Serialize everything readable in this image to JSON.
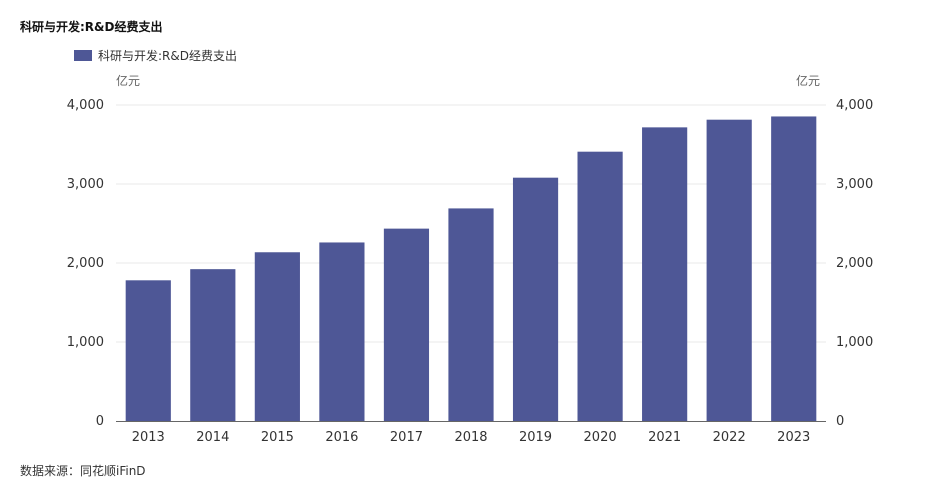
{
  "title": "科研与开发:R&D经费支出",
  "source": "数据来源：同花顺iFinD",
  "colors": {
    "bar": "#4e5796",
    "grid": "#e8e8e8",
    "axis": "#666666"
  },
  "chart_data": {
    "type": "bar",
    "title": "科研与开发:R&D经费支出",
    "categories": [
      "2013",
      "2014",
      "2015",
      "2016",
      "2017",
      "2018",
      "2019",
      "2020",
      "2021",
      "2022",
      "2023"
    ],
    "series": [
      {
        "name": "科研与开发:R&D经费支出",
        "values": [
          1781,
          1922,
          2136,
          2260,
          2435,
          2691,
          3080,
          3409,
          3717,
          3814,
          3855
        ]
      }
    ],
    "ylabel_left": "亿元",
    "ylabel_right": "亿元",
    "ylim": [
      0,
      4000
    ],
    "yticks": [
      0,
      1000,
      2000,
      3000,
      4000
    ],
    "ytick_labels": [
      "0",
      "1,000",
      "2,000",
      "3,000",
      "4,000"
    ],
    "grid": true,
    "legend": "top-left"
  }
}
